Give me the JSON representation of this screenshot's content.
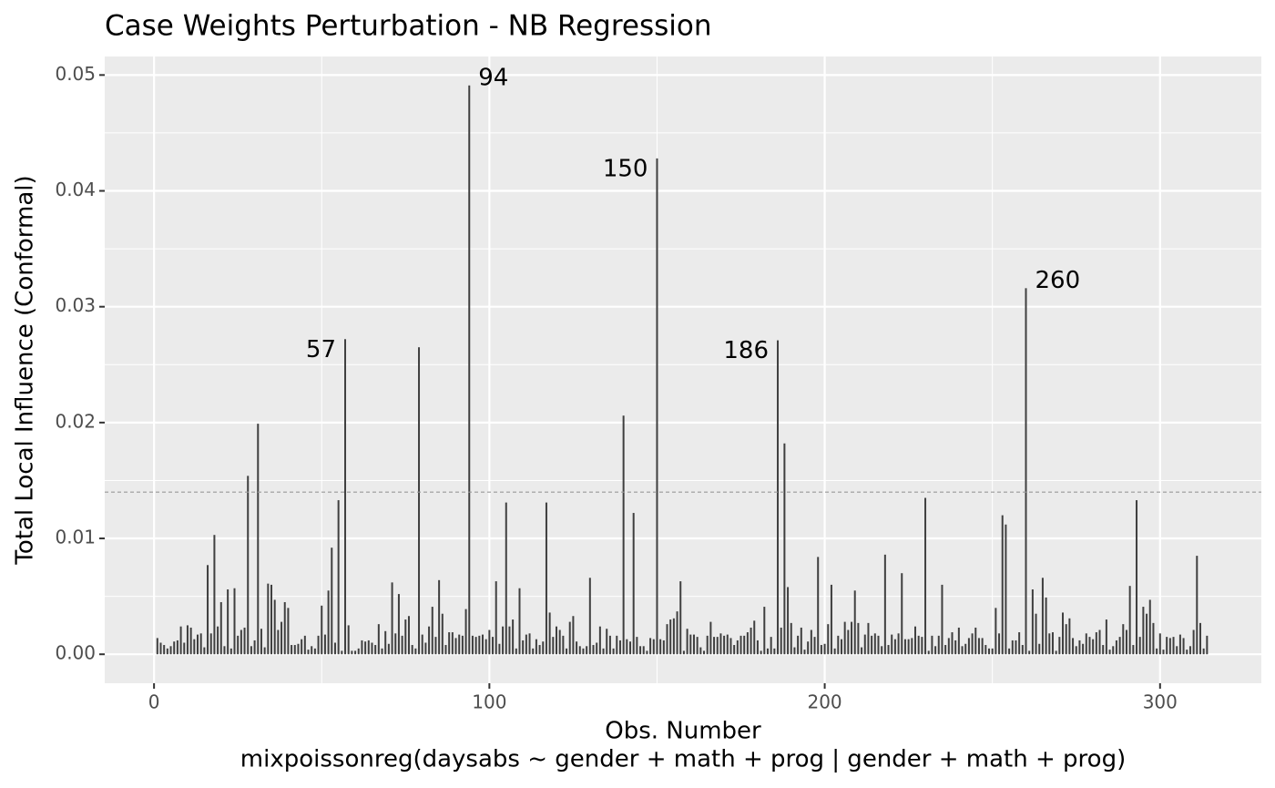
{
  "chart_data": {
    "type": "bar",
    "title": "Case Weights Perturbation - NB Regression",
    "xlabel": [
      "Obs. Number",
      "mixpoissonreg(daysabs ~ gender + math + prog | gender + math + prog)"
    ],
    "ylabel": "Total Local Influence (Conformal)",
    "color": "#3f3f3f",
    "grid": true,
    "threshold": 0.014,
    "xlim": [
      -14.7,
      330.2
    ],
    "ylim": [
      -0.0025,
      0.0516
    ],
    "xticks": [
      0,
      100,
      200,
      300
    ],
    "yticks": [
      {
        "value": 0,
        "label": "0.00"
      },
      0.01,
      0.02,
      0.03,
      0.04,
      0.05
    ],
    "annotations": [
      {
        "label": "57",
        "x": 57
      },
      {
        "label": "94",
        "x": 94
      },
      {
        "label": "150",
        "x": 150
      },
      {
        "label": "186",
        "x": 186
      },
      {
        "label": "260",
        "x": 260
      }
    ],
    "x": [
      1,
      2,
      3,
      4,
      5,
      6,
      7,
      8,
      9,
      10,
      11,
      12,
      13,
      14,
      15,
      16,
      17,
      18,
      19,
      20,
      21,
      22,
      23,
      24,
      25,
      26,
      27,
      28,
      29,
      30,
      31,
      32,
      33,
      34,
      35,
      36,
      37,
      38,
      39,
      40,
      41,
      42,
      43,
      44,
      45,
      46,
      47,
      48,
      49,
      50,
      51,
      52,
      53,
      54,
      55,
      56,
      57,
      58,
      59,
      60,
      61,
      62,
      63,
      64,
      65,
      66,
      67,
      68,
      69,
      70,
      71,
      72,
      73,
      74,
      75,
      76,
      77,
      78,
      79,
      80,
      81,
      82,
      83,
      84,
      85,
      86,
      87,
      88,
      89,
      90,
      91,
      92,
      93,
      94,
      95,
      96,
      97,
      98,
      99,
      100,
      101,
      102,
      103,
      104,
      105,
      106,
      107,
      108,
      109,
      110,
      111,
      112,
      113,
      114,
      115,
      116,
      117,
      118,
      119,
      120,
      121,
      122,
      123,
      124,
      125,
      126,
      127,
      128,
      129,
      130,
      131,
      132,
      133,
      134,
      135,
      136,
      137,
      138,
      139,
      140,
      141,
      142,
      143,
      144,
      145,
      146,
      147,
      148,
      149,
      150,
      151,
      152,
      153,
      154,
      155,
      156,
      157,
      158,
      159,
      160,
      161,
      162,
      163,
      164,
      165,
      166,
      167,
      168,
      169,
      170,
      171,
      172,
      173,
      174,
      175,
      176,
      177,
      178,
      179,
      180,
      181,
      182,
      183,
      184,
      185,
      186,
      187,
      188,
      189,
      190,
      191,
      192,
      193,
      194,
      195,
      196,
      197,
      198,
      199,
      200,
      201,
      202,
      203,
      204,
      205,
      206,
      207,
      208,
      209,
      210,
      211,
      212,
      213,
      214,
      215,
      216,
      217,
      218,
      219,
      220,
      221,
      222,
      223,
      224,
      225,
      226,
      227,
      228,
      229,
      230,
      231,
      232,
      233,
      234,
      235,
      236,
      237,
      238,
      239,
      240,
      241,
      242,
      243,
      244,
      245,
      246,
      247,
      248,
      249,
      250,
      251,
      252,
      253,
      254,
      255,
      256,
      257,
      258,
      259,
      260,
      261,
      262,
      263,
      264,
      265,
      266,
      267,
      268,
      269,
      270,
      271,
      272,
      273,
      274,
      275,
      276,
      277,
      278,
      279,
      280,
      281,
      282,
      283,
      284,
      285,
      286,
      287,
      288,
      289,
      290,
      291,
      292,
      293,
      294,
      295,
      296,
      297,
      298,
      299,
      300,
      301,
      302,
      303,
      304,
      305,
      306,
      307,
      308,
      309,
      310,
      311,
      312,
      313,
      314
    ],
    "values": [
      0.0014,
      0.001,
      0.0008,
      0.0005,
      0.0007,
      0.0011,
      0.0012,
      0.0024,
      0.001,
      0.0025,
      0.0023,
      0.0013,
      0.0017,
      0.0018,
      0.0006,
      0.0077,
      0.0018,
      0.0103,
      0.0024,
      0.0045,
      0.0007,
      0.0056,
      0.0005,
      0.0057,
      0.0016,
      0.0021,
      0.0023,
      0.0154,
      0.0007,
      0.0012,
      0.0199,
      0.0022,
      0.0006,
      0.0061,
      0.006,
      0.0047,
      0.0021,
      0.0028,
      0.0045,
      0.004,
      0.0008,
      0.0008,
      0.0009,
      0.0013,
      0.0016,
      0.0004,
      0.0007,
      0.0005,
      0.0016,
      0.0042,
      0.0017,
      0.0055,
      0.0092,
      0.001,
      0.0133,
      0.0003,
      0.0272,
      0.0025,
      0.0003,
      0.0003,
      0.0005,
      0.0012,
      0.0011,
      0.0012,
      0.001,
      0.0008,
      0.0026,
      0.0005,
      0.002,
      0.0009,
      0.0062,
      0.0018,
      0.0052,
      0.0016,
      0.003,
      0.0033,
      0.0008,
      0.0005,
      0.0265,
      0.0017,
      0.001,
      0.0024,
      0.0041,
      0.0015,
      0.0064,
      0.0035,
      0.0008,
      0.0019,
      0.0019,
      0.0014,
      0.0017,
      0.0016,
      0.0039,
      0.0491,
      0.0016,
      0.0015,
      0.0016,
      0.0017,
      0.0013,
      0.0021,
      0.0015,
      0.0063,
      0.0009,
      0.0024,
      0.0131,
      0.0024,
      0.003,
      0.0005,
      0.0057,
      0.0012,
      0.0017,
      0.0018,
      0.0005,
      0.0013,
      0.0008,
      0.0011,
      0.0131,
      0.0036,
      0.0015,
      0.0024,
      0.0021,
      0.0016,
      0.0005,
      0.0028,
      0.0033,
      0.0011,
      0.0007,
      0.0005,
      0.0007,
      0.0066,
      0.0008,
      0.001,
      0.0024,
      0.0005,
      0.0022,
      0.0016,
      0.0005,
      0.0016,
      0.0012,
      0.0206,
      0.0013,
      0.0011,
      0.0122,
      0.0015,
      0.0007,
      0.0007,
      0.0003,
      0.0014,
      0.0013,
      0.0428,
      0.0013,
      0.0012,
      0.0026,
      0.003,
      0.0031,
      0.0037,
      0.0063,
      0.0003,
      0.0022,
      0.0017,
      0.0017,
      0.0015,
      0.0006,
      0.0003,
      0.0016,
      0.0028,
      0.0015,
      0.0015,
      0.0018,
      0.0016,
      0.0017,
      0.0014,
      0.0008,
      0.0012,
      0.0016,
      0.0016,
      0.0019,
      0.0023,
      0.0029,
      0.0012,
      0.0003,
      0.0041,
      0.0005,
      0.0015,
      0.0005,
      0.0271,
      0.0023,
      0.0182,
      0.0058,
      0.0027,
      0.0006,
      0.0016,
      0.0023,
      0.0004,
      0.0011,
      0.0021,
      0.0015,
      0.0084,
      0.0008,
      0.0009,
      0.0026,
      0.006,
      0.0005,
      0.0016,
      0.0013,
      0.0028,
      0.0021,
      0.0028,
      0.0055,
      0.0027,
      0.0006,
      0.0017,
      0.0027,
      0.0016,
      0.0018,
      0.0016,
      0.0007,
      0.0086,
      0.0008,
      0.0017,
      0.0013,
      0.0018,
      0.007,
      0.0013,
      0.0013,
      0.0014,
      0.0024,
      0.0016,
      0.0015,
      0.0135,
      0.0003,
      0.0016,
      0.0007,
      0.0016,
      0.006,
      0.0008,
      0.0014,
      0.0019,
      0.0012,
      0.0023,
      0.0007,
      0.0009,
      0.0014,
      0.0018,
      0.0023,
      0.0014,
      0.0014,
      0.0008,
      0.0005,
      0.0005,
      0.004,
      0.0018,
      0.012,
      0.0112,
      0.0005,
      0.0012,
      0.0012,
      0.0019,
      0.0008,
      0.0316,
      0.0003,
      0.0056,
      0.0035,
      0.0009,
      0.0066,
      0.0049,
      0.0018,
      0.0019,
      0.0003,
      0.0015,
      0.0036,
      0.0026,
      0.0031,
      0.0014,
      0.0007,
      0.0012,
      0.0009,
      0.0018,
      0.0015,
      0.0013,
      0.0019,
      0.0021,
      0.0008,
      0.003,
      0.0004,
      0.0007,
      0.0012,
      0.0015,
      0.0026,
      0.0021,
      0.0059,
      0.0008,
      0.0133,
      0.0015,
      0.0041,
      0.0035,
      0.0047,
      0.0027,
      0.0005,
      0.0018,
      0.0004,
      0.0015,
      0.0014,
      0.0015,
      0.0007,
      0.0017,
      0.0014,
      0.0004,
      0.0007,
      0.0021,
      0.0085,
      0.0027,
      0.0005,
      0.0016
    ]
  }
}
